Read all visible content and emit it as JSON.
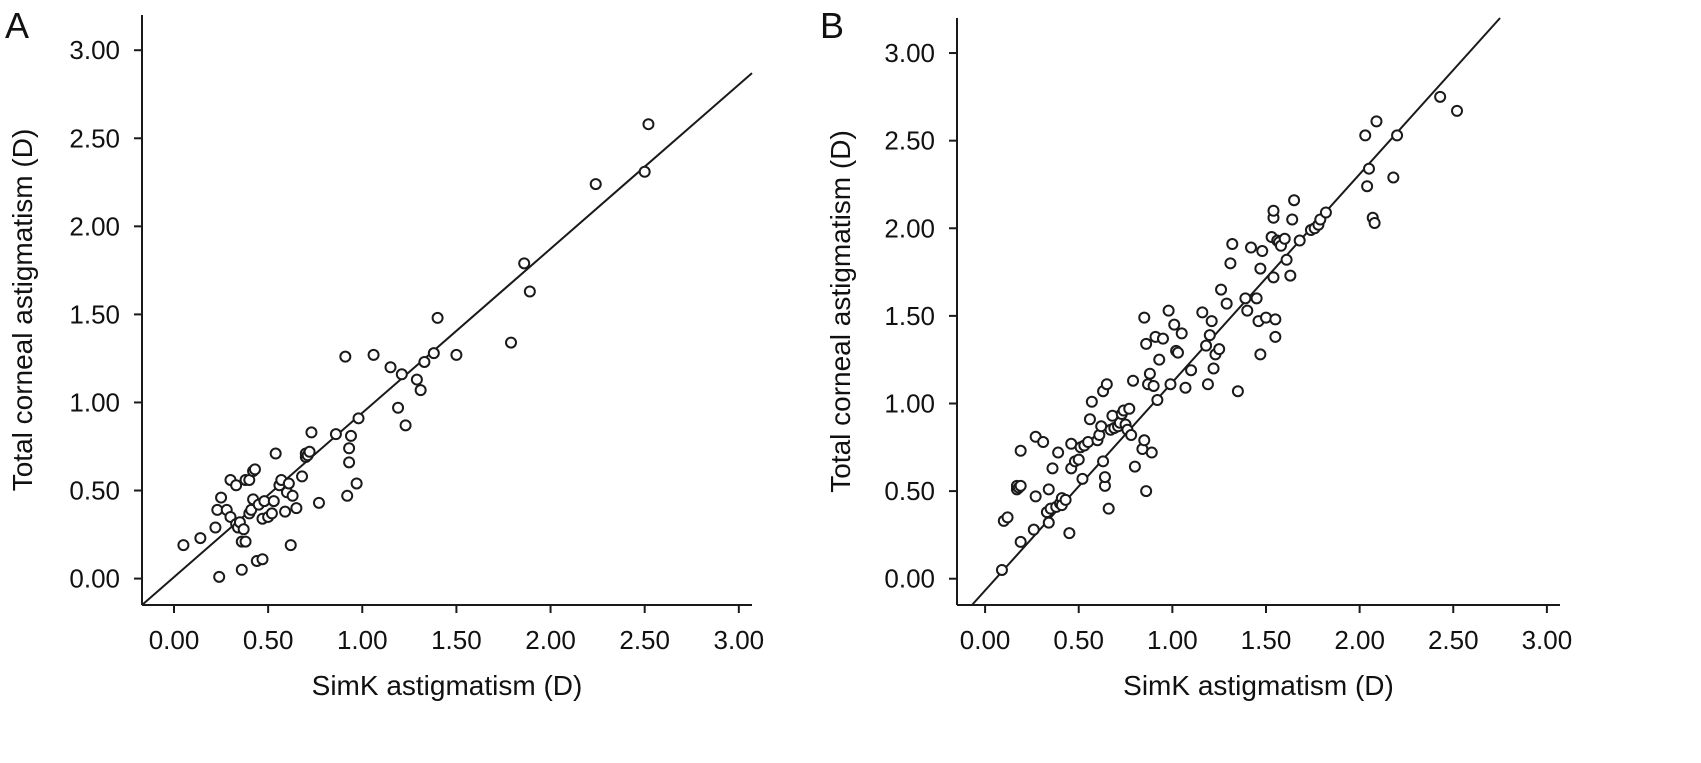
{
  "chart_data": [
    {
      "type": "scatter",
      "panel_label": "A",
      "xlabel": "SimK astigmatism (D)",
      "ylabel": "Total corneal astigmatism (D)",
      "xlim": [
        -0.17,
        3.07
      ],
      "ylim": [
        -0.15,
        3.2
      ],
      "xticks": [
        "0.00",
        "0.50",
        "1.00",
        "1.50",
        "2.00",
        "2.50",
        "3.00"
      ],
      "yticks": [
        "0.00",
        "0.50",
        "1.00",
        "1.50",
        "2.00",
        "2.50",
        "3.00"
      ],
      "fit_line": [
        [
          -0.17,
          -0.15
        ],
        [
          3.07,
          2.87
        ]
      ],
      "points": [
        [
          0.05,
          0.19
        ],
        [
          0.14,
          0.23
        ],
        [
          0.22,
          0.29
        ],
        [
          0.23,
          0.39
        ],
        [
          0.25,
          0.46
        ],
        [
          0.24,
          0.01
        ],
        [
          0.28,
          0.39
        ],
        [
          0.3,
          0.35
        ],
        [
          0.3,
          0.56
        ],
        [
          0.33,
          0.53
        ],
        [
          0.33,
          0.31
        ],
        [
          0.34,
          0.29
        ],
        [
          0.35,
          0.32
        ],
        [
          0.36,
          0.21
        ],
        [
          0.37,
          0.28
        ],
        [
          0.38,
          0.21
        ],
        [
          0.36,
          0.05
        ],
        [
          0.38,
          0.56
        ],
        [
          0.4,
          0.37
        ],
        [
          0.4,
          0.56
        ],
        [
          0.41,
          0.39
        ],
        [
          0.42,
          0.45
        ],
        [
          0.42,
          0.61
        ],
        [
          0.43,
          0.62
        ],
        [
          0.44,
          0.1
        ],
        [
          0.45,
          0.42
        ],
        [
          0.47,
          0.11
        ],
        [
          0.47,
          0.34
        ],
        [
          0.48,
          0.44
        ],
        [
          0.5,
          0.35
        ],
        [
          0.52,
          0.37
        ],
        [
          0.53,
          0.44
        ],
        [
          0.54,
          0.71
        ],
        [
          0.56,
          0.53
        ],
        [
          0.57,
          0.56
        ],
        [
          0.59,
          0.38
        ],
        [
          0.6,
          0.49
        ],
        [
          0.61,
          0.54
        ],
        [
          0.62,
          0.19
        ],
        [
          0.63,
          0.47
        ],
        [
          0.65,
          0.4
        ],
        [
          0.68,
          0.58
        ],
        [
          0.7,
          0.69
        ],
        [
          0.7,
          0.71
        ],
        [
          0.71,
          0.7
        ],
        [
          0.72,
          0.72
        ],
        [
          0.73,
          0.83
        ],
        [
          0.77,
          0.43
        ],
        [
          0.86,
          0.82
        ],
        [
          0.92,
          0.47
        ],
        [
          0.93,
          0.66
        ],
        [
          0.93,
          0.74
        ],
        [
          0.94,
          0.81
        ],
        [
          0.97,
          0.54
        ],
        [
          0.98,
          0.91
        ],
        [
          0.91,
          1.26
        ],
        [
          1.06,
          1.27
        ],
        [
          1.15,
          1.2
        ],
        [
          1.19,
          0.97
        ],
        [
          1.21,
          1.16
        ],
        [
          1.23,
          0.87
        ],
        [
          1.29,
          1.13
        ],
        [
          1.31,
          1.07
        ],
        [
          1.33,
          1.23
        ],
        [
          1.38,
          1.28
        ],
        [
          1.4,
          1.48
        ],
        [
          1.5,
          1.27
        ],
        [
          1.79,
          1.34
        ],
        [
          1.86,
          1.79
        ],
        [
          1.89,
          1.63
        ],
        [
          2.24,
          2.24
        ],
        [
          2.5,
          2.31
        ],
        [
          2.52,
          2.58
        ]
      ]
    },
    {
      "type": "scatter",
      "panel_label": "B",
      "xlabel": "SimK astigmatism (D)",
      "ylabel": "Total corneal astigmatism (D)",
      "xlim": [
        -0.15,
        3.07
      ],
      "ylim": [
        -0.15,
        3.2
      ],
      "xticks": [
        "0.00",
        "0.50",
        "1.00",
        "1.50",
        "2.00",
        "2.50",
        "3.00"
      ],
      "yticks": [
        "0.00",
        "0.50",
        "1.00",
        "1.50",
        "2.00",
        "2.50",
        "3.00"
      ],
      "fit_line": [
        [
          -0.07,
          -0.15
        ],
        [
          2.75,
          3.2
        ]
      ],
      "points": [
        [
          0.09,
          0.05
        ],
        [
          0.1,
          0.33
        ],
        [
          0.12,
          0.35
        ],
        [
          0.17,
          0.51
        ],
        [
          0.17,
          0.53
        ],
        [
          0.18,
          0.52
        ],
        [
          0.19,
          0.53
        ],
        [
          0.19,
          0.73
        ],
        [
          0.19,
          0.21
        ],
        [
          0.26,
          0.28
        ],
        [
          0.27,
          0.47
        ],
        [
          0.27,
          0.81
        ],
        [
          0.31,
          0.78
        ],
        [
          0.33,
          0.38
        ],
        [
          0.34,
          0.51
        ],
        [
          0.34,
          0.32
        ],
        [
          0.35,
          0.4
        ],
        [
          0.36,
          0.63
        ],
        [
          0.38,
          0.41
        ],
        [
          0.39,
          0.72
        ],
        [
          0.4,
          0.43
        ],
        [
          0.41,
          0.46
        ],
        [
          0.41,
          0.42
        ],
        [
          0.43,
          0.45
        ],
        [
          0.45,
          0.26
        ],
        [
          0.46,
          0.63
        ],
        [
          0.46,
          0.77
        ],
        [
          0.48,
          0.67
        ],
        [
          0.5,
          0.68
        ],
        [
          0.51,
          0.75
        ],
        [
          0.52,
          0.57
        ],
        [
          0.53,
          0.76
        ],
        [
          0.55,
          0.78
        ],
        [
          0.56,
          0.91
        ],
        [
          0.57,
          1.01
        ],
        [
          0.6,
          0.79
        ],
        [
          0.61,
          0.82
        ],
        [
          0.62,
          0.87
        ],
        [
          0.63,
          1.07
        ],
        [
          0.63,
          0.67
        ],
        [
          0.64,
          0.53
        ],
        [
          0.64,
          0.58
        ],
        [
          0.65,
          1.11
        ],
        [
          0.66,
          0.4
        ],
        [
          0.67,
          0.85
        ],
        [
          0.68,
          0.93
        ],
        [
          0.69,
          0.86
        ],
        [
          0.71,
          0.87
        ],
        [
          0.72,
          0.89
        ],
        [
          0.73,
          0.94
        ],
        [
          0.74,
          0.96
        ],
        [
          0.75,
          0.88
        ],
        [
          0.76,
          0.85
        ],
        [
          0.77,
          0.97
        ],
        [
          0.78,
          0.82
        ],
        [
          0.79,
          1.13
        ],
        [
          0.8,
          0.64
        ],
        [
          0.84,
          0.74
        ],
        [
          0.85,
          0.79
        ],
        [
          0.85,
          1.49
        ],
        [
          0.86,
          0.5
        ],
        [
          0.86,
          1.34
        ],
        [
          0.87,
          1.11
        ],
        [
          0.88,
          1.17
        ],
        [
          0.89,
          0.72
        ],
        [
          0.9,
          1.1
        ],
        [
          0.91,
          1.38
        ],
        [
          0.92,
          1.02
        ],
        [
          0.93,
          1.25
        ],
        [
          0.95,
          1.37
        ],
        [
          0.98,
          1.53
        ],
        [
          0.99,
          1.11
        ],
        [
          1.01,
          1.45
        ],
        [
          1.02,
          1.3
        ],
        [
          1.03,
          1.29
        ],
        [
          1.05,
          1.4
        ],
        [
          1.07,
          1.09
        ],
        [
          1.1,
          1.19
        ],
        [
          1.16,
          1.52
        ],
        [
          1.18,
          1.33
        ],
        [
          1.19,
          1.11
        ],
        [
          1.2,
          1.39
        ],
        [
          1.21,
          1.47
        ],
        [
          1.22,
          1.2
        ],
        [
          1.23,
          1.28
        ],
        [
          1.25,
          1.31
        ],
        [
          1.26,
          1.65
        ],
        [
          1.29,
          1.57
        ],
        [
          1.31,
          1.8
        ],
        [
          1.32,
          1.91
        ],
        [
          1.35,
          1.07
        ],
        [
          1.39,
          1.6
        ],
        [
          1.4,
          1.53
        ],
        [
          1.42,
          1.89
        ],
        [
          1.45,
          1.6
        ],
        [
          1.46,
          1.47
        ],
        [
          1.47,
          1.77
        ],
        [
          1.47,
          1.28
        ],
        [
          1.48,
          1.87
        ],
        [
          1.5,
          1.49
        ],
        [
          1.53,
          1.95
        ],
        [
          1.54,
          1.72
        ],
        [
          1.54,
          2.06
        ],
        [
          1.55,
          1.38
        ],
        [
          1.55,
          1.48
        ],
        [
          1.56,
          1.93
        ],
        [
          1.57,
          1.92
        ],
        [
          1.58,
          1.9
        ],
        [
          1.6,
          1.94
        ],
        [
          1.61,
          1.82
        ],
        [
          1.63,
          1.73
        ],
        [
          1.64,
          2.05
        ],
        [
          1.65,
          2.16
        ],
        [
          1.68,
          1.93
        ],
        [
          1.74,
          1.99
        ],
        [
          1.76,
          2.0
        ],
        [
          1.78,
          2.02
        ],
        [
          1.79,
          2.05
        ],
        [
          1.82,
          2.09
        ],
        [
          2.03,
          2.53
        ],
        [
          2.04,
          2.24
        ],
        [
          2.05,
          2.34
        ],
        [
          2.07,
          2.06
        ],
        [
          2.08,
          2.03
        ],
        [
          2.09,
          2.61
        ],
        [
          2.18,
          2.29
        ],
        [
          2.2,
          2.53
        ],
        [
          2.43,
          2.75
        ],
        [
          2.52,
          2.67
        ],
        [
          1.54,
          2.1
        ]
      ]
    }
  ]
}
